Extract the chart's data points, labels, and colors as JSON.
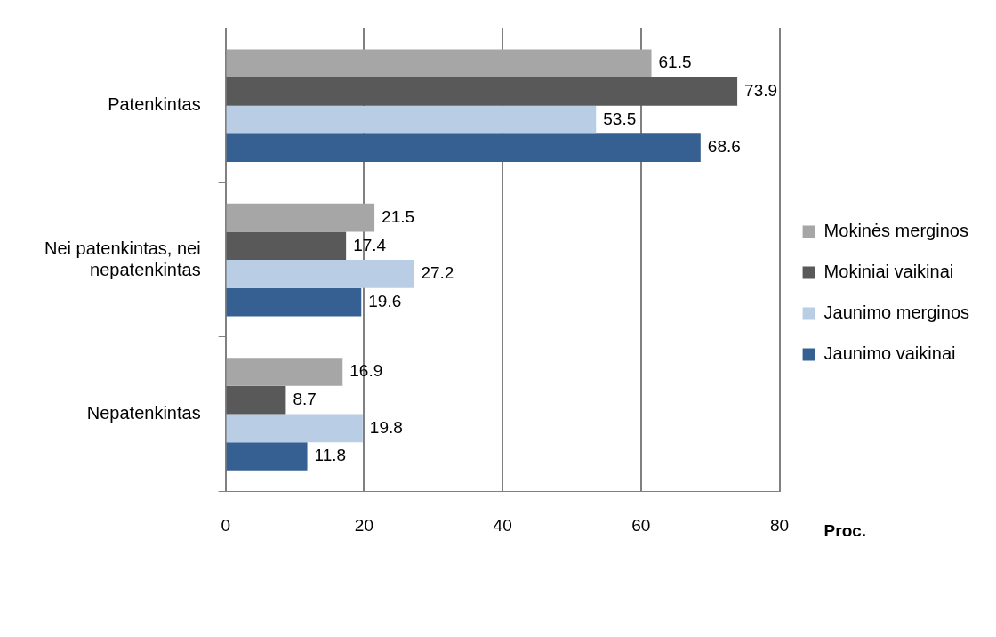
{
  "chart_data": {
    "type": "bar",
    "orientation": "horizontal",
    "xlabel": "Proc.",
    "categories": [
      "Patenkintas",
      "Nei patenkintas, nei nepatenkintas",
      "Nepatenkintas"
    ],
    "series": [
      {
        "name": "Mokinės merginos",
        "color": "#a6a6a6",
        "values": [
          61.5,
          21.5,
          16.9
        ]
      },
      {
        "name": "Mokiniai vaikinai",
        "color": "#595959",
        "values": [
          73.9,
          17.4,
          8.7
        ]
      },
      {
        "name": "Jaunimo merginos",
        "color": "#b9cde5",
        "values": [
          53.5,
          27.2,
          19.8
        ]
      },
      {
        "name": "Jaunimo vaikinai",
        "color": "#376092",
        "values": [
          68.6,
          19.6,
          11.8
        ]
      }
    ],
    "xlim": [
      0,
      80
    ],
    "xticks": [
      0,
      20,
      40,
      60,
      80
    ],
    "grid": "x",
    "legend": "right",
    "data_labels": true
  }
}
